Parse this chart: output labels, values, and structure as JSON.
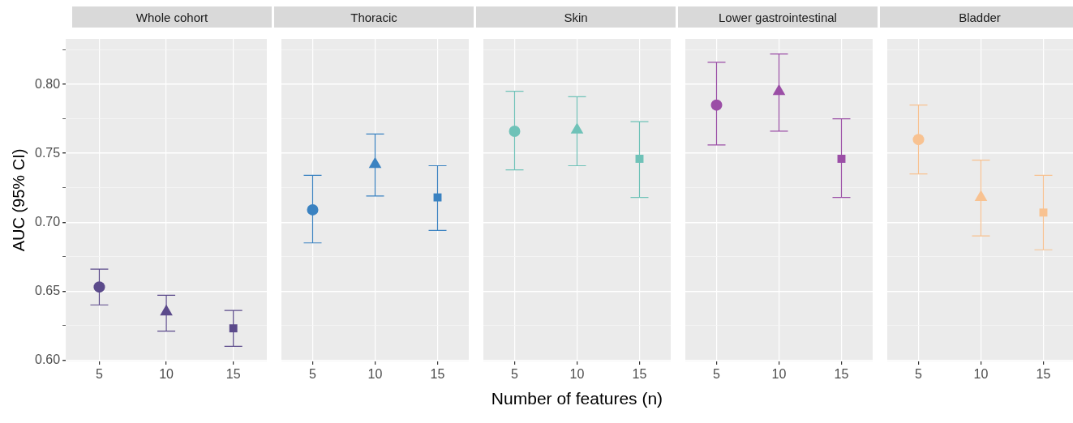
{
  "chart_data": [
    {
      "type": "scatter",
      "title": "Whole cohort",
      "ylabel": "AUC (95% CI)",
      "categories": [
        "5",
        "10",
        "15"
      ],
      "ylim": [
        0.599,
        0.833
      ],
      "yticks": [
        {
          "value": 0.6,
          "label": "0.60"
        },
        {
          "value": 0.625,
          "label": null
        },
        {
          "value": 0.65,
          "label": "0.65"
        },
        {
          "value": 0.675,
          "label": null
        },
        {
          "value": 0.7,
          "label": "0.70"
        },
        {
          "value": 0.725,
          "label": null
        },
        {
          "value": 0.75,
          "label": "0.75"
        },
        {
          "value": 0.775,
          "label": null
        },
        {
          "value": 0.8,
          "label": "0.80"
        },
        {
          "value": 0.825,
          "label": null
        }
      ],
      "grid": true,
      "legend": false,
      "series": [
        {
          "color": "#5b4a8b",
          "marker": "circle",
          "x": [
            "5"
          ],
          "values": [
            0.653
          ],
          "errors": [
            [
              0.64,
              0.666
            ]
          ]
        },
        {
          "color": "#5b4a8b",
          "marker": "triangle",
          "x": [
            "10"
          ],
          "values": [
            0.635
          ],
          "errors": [
            [
              0.621,
              0.647
            ]
          ]
        },
        {
          "color": "#5b4a8b",
          "marker": "square",
          "x": [
            "15"
          ],
          "values": [
            0.623
          ],
          "errors": [
            [
              0.61,
              0.636
            ]
          ]
        }
      ]
    },
    {
      "type": "scatter",
      "title": "Thoracic",
      "categories": [
        "5",
        "10",
        "15"
      ],
      "tick_labels": "x",
      "ylim": [
        0.599,
        0.833
      ],
      "yticks": [
        0.6,
        {
          "value": 0.625,
          "label": null
        },
        0.65,
        {
          "value": 0.675,
          "label": null
        },
        0.7,
        {
          "value": 0.725,
          "label": null
        },
        0.75,
        {
          "value": 0.775,
          "label": null
        },
        0.8,
        {
          "value": 0.825,
          "label": null
        }
      ],
      "grid": true,
      "legend": false,
      "series": [
        {
          "color": "#3a82c1",
          "marker": "circle",
          "x": [
            "5"
          ],
          "values": [
            0.709
          ],
          "errors": [
            [
              0.685,
              0.734
            ]
          ]
        },
        {
          "color": "#3a82c1",
          "marker": "triangle",
          "x": [
            "10"
          ],
          "values": [
            0.742
          ],
          "errors": [
            [
              0.719,
              0.764
            ]
          ]
        },
        {
          "color": "#3a82c1",
          "marker": "square",
          "x": [
            "15"
          ],
          "values": [
            0.718
          ],
          "errors": [
            [
              0.694,
              0.741
            ]
          ]
        }
      ]
    },
    {
      "type": "scatter",
      "title": "Skin",
      "xlabel": "Number of features (n)",
      "categories": [
        "5",
        "10",
        "15"
      ],
      "tick_labels": "x",
      "ylim": [
        0.599,
        0.833
      ],
      "yticks": [
        0.6,
        {
          "value": 0.625,
          "label": null
        },
        0.65,
        {
          "value": 0.675,
          "label": null
        },
        0.7,
        {
          "value": 0.725,
          "label": null
        },
        0.75,
        {
          "value": 0.775,
          "label": null
        },
        0.8,
        {
          "value": 0.825,
          "label": null
        }
      ],
      "grid": true,
      "legend": false,
      "series": [
        {
          "color": "#6fc2b8",
          "marker": "circle",
          "x": [
            "5"
          ],
          "values": [
            0.766
          ],
          "errors": [
            [
              0.738,
              0.795
            ]
          ]
        },
        {
          "color": "#6fc2b8",
          "marker": "triangle",
          "x": [
            "10"
          ],
          "values": [
            0.767
          ],
          "errors": [
            [
              0.741,
              0.791
            ]
          ]
        },
        {
          "color": "#6fc2b8",
          "marker": "square",
          "x": [
            "15"
          ],
          "values": [
            0.746
          ],
          "errors": [
            [
              0.718,
              0.773
            ]
          ]
        }
      ]
    },
    {
      "type": "scatter",
      "title": "Lower gastrointestinal",
      "categories": [
        "5",
        "10",
        "15"
      ],
      "tick_labels": "x",
      "ylim": [
        0.599,
        0.833
      ],
      "yticks": [
        0.6,
        {
          "value": 0.625,
          "label": null
        },
        0.65,
        {
          "value": 0.675,
          "label": null
        },
        0.7,
        {
          "value": 0.725,
          "label": null
        },
        0.75,
        {
          "value": 0.775,
          "label": null
        },
        0.8,
        {
          "value": 0.825,
          "label": null
        }
      ],
      "grid": true,
      "legend": false,
      "series": [
        {
          "color": "#9b4ea6",
          "marker": "circle",
          "x": [
            "5"
          ],
          "values": [
            0.785
          ],
          "errors": [
            [
              0.756,
              0.816
            ]
          ]
        },
        {
          "color": "#9b4ea6",
          "marker": "triangle",
          "x": [
            "10"
          ],
          "values": [
            0.795
          ],
          "errors": [
            [
              0.766,
              0.822
            ]
          ]
        },
        {
          "color": "#9b4ea6",
          "marker": "square",
          "x": [
            "15"
          ],
          "values": [
            0.746
          ],
          "errors": [
            [
              0.718,
              0.775
            ]
          ]
        }
      ]
    },
    {
      "type": "scatter",
      "title": "Bladder",
      "categories": [
        "5",
        "10",
        "15"
      ],
      "tick_labels": "x",
      "ylim": [
        0.599,
        0.833
      ],
      "yticks": [
        0.6,
        {
          "value": 0.625,
          "label": null
        },
        0.65,
        {
          "value": 0.675,
          "label": null
        },
        0.7,
        {
          "value": 0.725,
          "label": null
        },
        0.75,
        {
          "value": 0.775,
          "label": null
        },
        0.8,
        {
          "value": 0.825,
          "label": null
        }
      ],
      "grid": true,
      "legend": false,
      "series": [
        {
          "color": "#f8c291",
          "marker": "circle",
          "x": [
            "5"
          ],
          "values": [
            0.76
          ],
          "errors": [
            [
              0.735,
              0.785
            ]
          ]
        },
        {
          "color": "#f8c291",
          "marker": "triangle",
          "x": [
            "10"
          ],
          "values": [
            0.718
          ],
          "errors": [
            [
              0.69,
              0.745
            ]
          ]
        },
        {
          "color": "#f8c291",
          "marker": "square",
          "x": [
            "15"
          ],
          "values": [
            0.707
          ],
          "errors": [
            [
              0.68,
              0.734
            ]
          ]
        }
      ]
    }
  ]
}
